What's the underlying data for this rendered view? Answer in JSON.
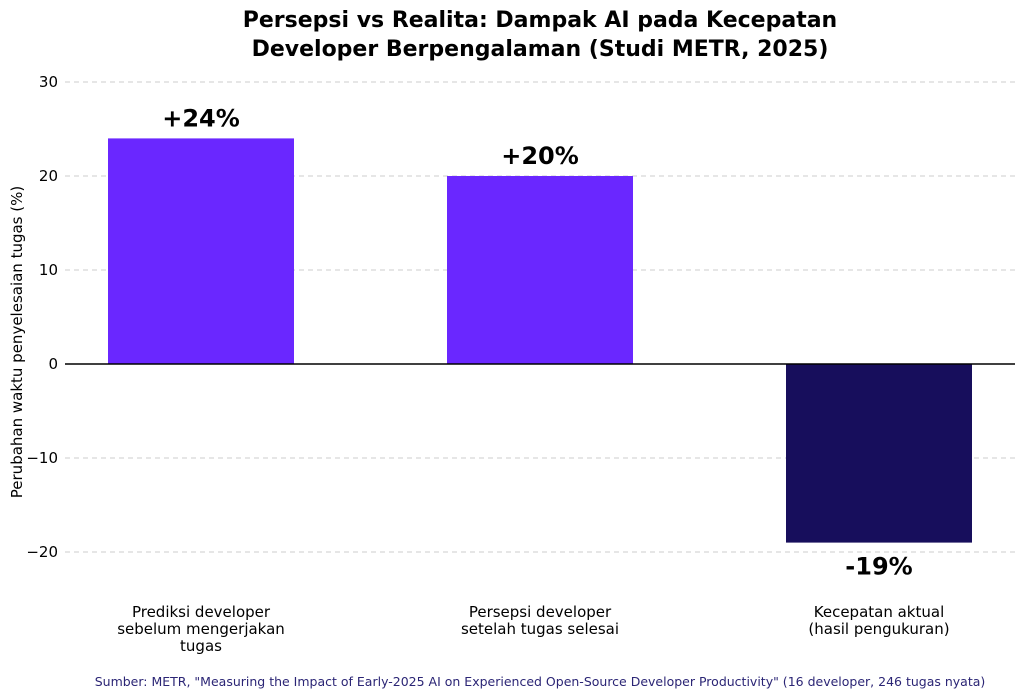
{
  "chart_data": {
    "type": "bar",
    "title_lines": [
      "Persepsi vs Realita: Dampak AI pada Kecepatan",
      "Developer Berpengalaman (Studi METR, 2025)"
    ],
    "ylabel": "Perubahan waktu penyelesaian tugas (%)",
    "xlabel": "",
    "ylim": [
      -23,
      30
    ],
    "yticks": [
      30,
      20,
      10,
      0,
      -10,
      -20
    ],
    "ytick_labels": [
      "30",
      "20",
      "10",
      "0",
      "−10",
      "−20"
    ],
    "grid": true,
    "categories": [
      [
        "Prediksi developer",
        "sebelum mengerjakan",
        "tugas"
      ],
      [
        "Persepsi developer",
        "setelah tugas selesai"
      ],
      [
        "Kecepatan aktual",
        "(hasil pengukuran)"
      ]
    ],
    "values": [
      24,
      20,
      -19
    ],
    "data_labels": [
      "+24%",
      "+20%",
      "-19%"
    ],
    "colors": [
      "#6a27ff",
      "#6a27ff",
      "#170e5c"
    ],
    "source": "Sumber: METR, \"Measuring the Impact of Early-2025 AI on Experienced Open-Source Developer Productivity\" (16 developer, 246 tugas nyata)"
  }
}
